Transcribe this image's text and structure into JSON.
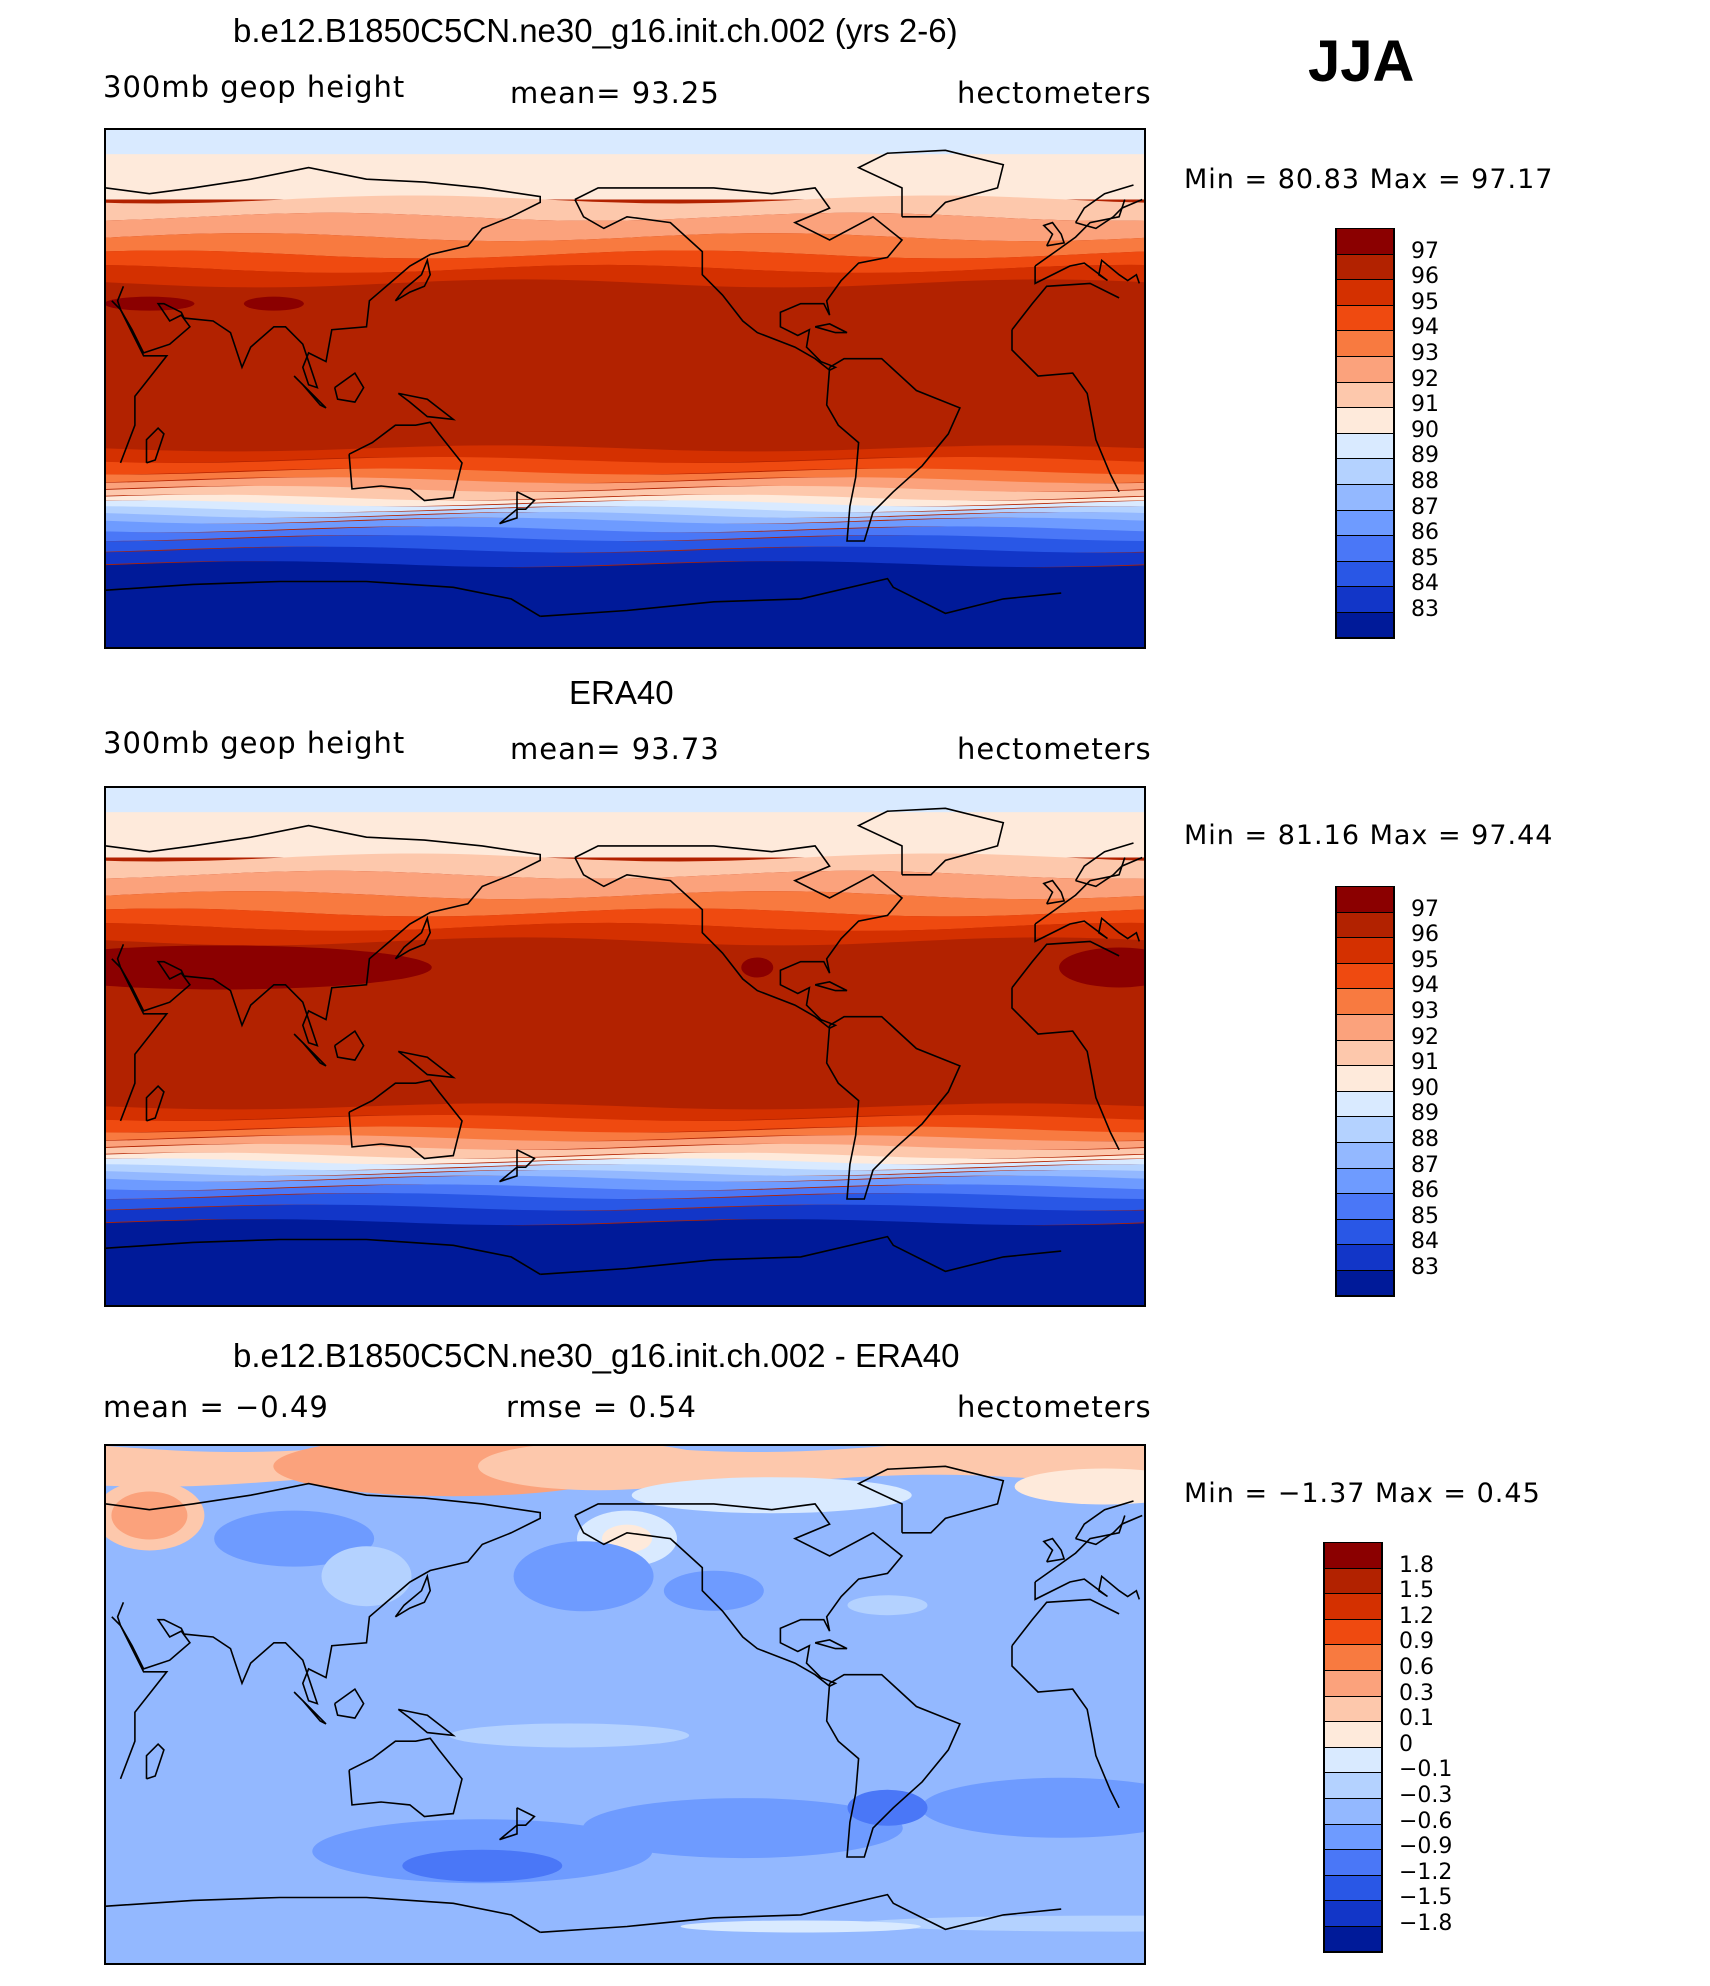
{
  "season": "JJA",
  "panels": [
    {
      "id": "model",
      "title": "b.e12.B1850C5CN.ne30_g16.init.ch.002 (yrs 2-6)",
      "left_label": "300mb  geop  height",
      "center_label": "mean=   93.25",
      "right_label": "hectometers",
      "minmax": "Min  =    80.83  Max  =    97.17",
      "variant": "model",
      "levels": [
        "97",
        "96",
        "95",
        "94",
        "93",
        "92",
        "91",
        "90",
        "89",
        "88",
        "87",
        "86",
        "85",
        "84",
        "83"
      ],
      "colors": [
        "#8b0000",
        "#b22200",
        "#d43000",
        "#ef4a10",
        "#f87a40",
        "#fba27c",
        "#fdc8ac",
        "#feeadb",
        "#d9eaff",
        "#b4d2ff",
        "#93b8ff",
        "#6e9bff",
        "#4a77f7",
        "#2957e6",
        "#1236c8",
        "#001a99"
      ]
    },
    {
      "id": "obs",
      "title": "ERA40",
      "left_label": "300mb  geop  height",
      "center_label": "mean=   93.73",
      "right_label": "hectometers",
      "minmax": "Min  =    81.16  Max  =    97.44",
      "variant": "obs",
      "levels": [
        "97",
        "96",
        "95",
        "94",
        "93",
        "92",
        "91",
        "90",
        "89",
        "88",
        "87",
        "86",
        "85",
        "84",
        "83"
      ],
      "colors": [
        "#8b0000",
        "#b22200",
        "#d43000",
        "#ef4a10",
        "#f87a40",
        "#fba27c",
        "#fdc8ac",
        "#feeadb",
        "#d9eaff",
        "#b4d2ff",
        "#93b8ff",
        "#6e9bff",
        "#4a77f7",
        "#2957e6",
        "#1236c8",
        "#001a99"
      ]
    },
    {
      "id": "diff",
      "title": "b.e12.B1850C5CN.ne30_g16.init.ch.002 - ERA40",
      "left_label": "mean  =    −0.49",
      "center_label": "rmse  =     0.54",
      "right_label": "hectometers",
      "minmax": "Min  =   −1.37  Max  =      0.45",
      "variant": "diff",
      "levels": [
        "1.8",
        "1.5",
        "1.2",
        "0.9",
        "0.6",
        "0.3",
        "0.1",
        "0",
        "−0.1",
        "−0.3",
        "−0.6",
        "−0.9",
        "−1.2",
        "−1.5",
        "−1.8"
      ],
      "colors": [
        "#8b0000",
        "#b22200",
        "#d43000",
        "#ef4a10",
        "#f87a40",
        "#fba27c",
        "#fdc8ac",
        "#feeadb",
        "#d9eaff",
        "#b4d2ff",
        "#93b8ff",
        "#6e9bff",
        "#4a77f7",
        "#2957e6",
        "#1236c8",
        "#001a99"
      ]
    }
  ]
}
